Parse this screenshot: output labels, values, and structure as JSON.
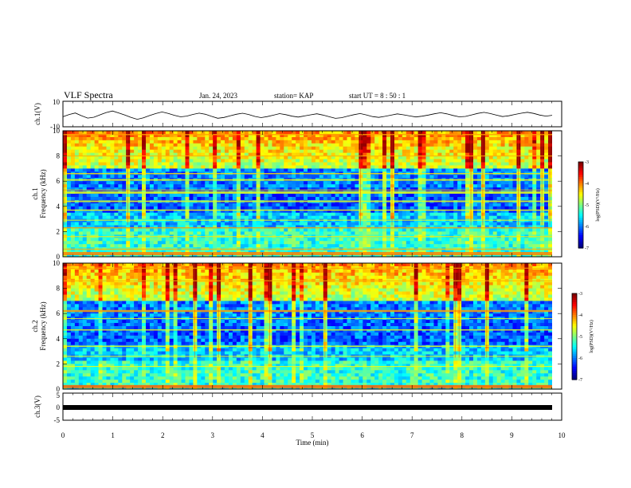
{
  "header": {
    "title": "VLF Spectra",
    "date": "Jan. 24, 2023",
    "station": "station= KAP",
    "start": "start  UT =   8  : 50 : 1"
  },
  "chart_data": [
    {
      "type": "line",
      "ylabel": "ch.1(V)",
      "ylim": [
        -10,
        10
      ],
      "y_tick_labels": [
        "10",
        "-10"
      ],
      "xlim": [
        0,
        10
      ],
      "series": [
        {
          "values": [
            -2.1,
            -0.4,
            0.8,
            -1.3,
            -3.2,
            -2.5,
            -0.6,
            1.2,
            2.4,
            0.9,
            -0.8,
            -2.6,
            -4.1,
            -3.0,
            -1.2,
            0.4,
            1.6,
            0.5,
            -1.0,
            -2.2,
            -1.6,
            -0.3,
            0.7,
            -0.2,
            -1.8,
            -3.3,
            -2.7,
            -1.4,
            -0.2,
            0.6,
            -0.4,
            -1.9,
            -2.8,
            -2.0,
            -0.9,
            0.3,
            -0.5,
            -1.7,
            -2.4,
            -1.5,
            -0.6,
            0.2,
            -0.8,
            -2.1,
            -3.4,
            -2.9,
            -1.6,
            -0.5,
            0.4,
            -0.7,
            -2.0,
            -2.6,
            -1.8,
            -0.9,
            0.1,
            -0.6,
            -1.5,
            -2.3,
            -1.7,
            -0.8,
            0.2,
            1.0,
            0.1,
            -1.1,
            -2.2,
            -1.9,
            -0.7,
            0.5,
            1.3,
            0.4,
            -0.9,
            -2.0,
            -1.4,
            -0.3,
            0.6,
            1.4,
            0.5,
            -0.8,
            -1.6,
            -1.0
          ]
        }
      ]
    },
    {
      "type": "heatmap",
      "ylabel": "ch.1\nFrequency (kHz)",
      "y_tick_labels": [
        "0",
        "2",
        "4",
        "6",
        "8",
        "10"
      ],
      "ylim": [
        0,
        10
      ],
      "xlim": [
        0,
        10
      ],
      "colorbar": {
        "label": "log(PSD)(V²/Hz)",
        "range": [
          -7,
          -3
        ],
        "tick_labels": [
          "-3",
          "-4",
          "-5",
          "-6",
          "-7"
        ]
      }
    },
    {
      "type": "heatmap",
      "ylabel": "ch.2\nFrequency (kHz)",
      "y_tick_labels": [
        "0",
        "2",
        "4",
        "6",
        "8",
        "10"
      ],
      "ylim": [
        0,
        10
      ],
      "xlim": [
        0,
        10
      ],
      "colorbar": {
        "label": "log(PSD)(V²/Hz)",
        "range": [
          -7,
          -3
        ],
        "tick_labels": [
          "-3",
          "-4",
          "-5",
          "-6",
          "-7"
        ]
      }
    },
    {
      "type": "line",
      "ylabel": "ch.3(V)",
      "ylim": [
        -5,
        5
      ],
      "y_tick_labels": [
        "5",
        "0",
        "-5"
      ],
      "xlim": [
        0,
        10
      ],
      "series": [
        {
          "values": [
            0.0,
            0.0
          ]
        }
      ]
    }
  ],
  "x_axis": {
    "label": "Time  (min)",
    "tick_labels": [
      "0",
      "1",
      "2",
      "3",
      "4",
      "5",
      "6",
      "7",
      "8",
      "9",
      "10"
    ]
  },
  "colors": {
    "axis": "#000000",
    "trace": "#000000"
  }
}
